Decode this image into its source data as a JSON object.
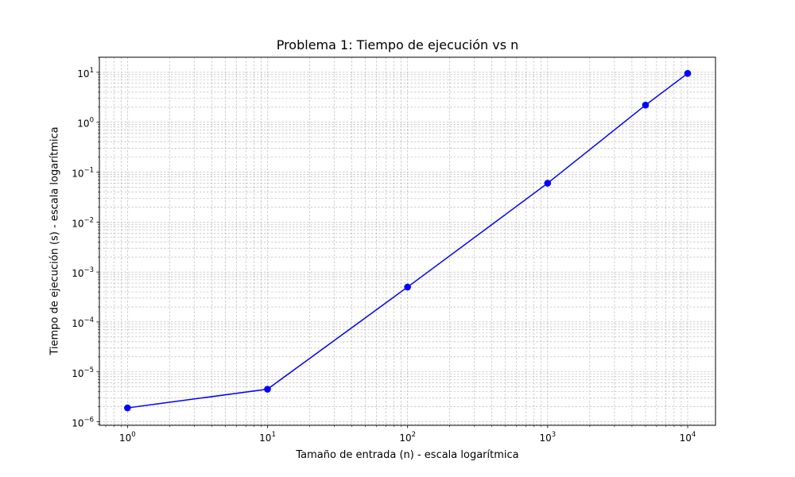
{
  "chart_data": {
    "type": "line",
    "title": "Problema 1: Tiempo de ejecución vs n",
    "xlabel": "Tamaño de entrada (n) - escala logarítmica",
    "ylabel": "Tiempo de ejecución (s) - escala logarítmica",
    "x_scale": "log",
    "y_scale": "log",
    "grid": "both (major and minor), dashed",
    "xlim": [
      0.63,
      15800
    ],
    "ylim": [
      8.5e-07,
      20
    ],
    "x_ticks": [
      {
        "value": 1,
        "base": "10",
        "exp": "0"
      },
      {
        "value": 10,
        "base": "10",
        "exp": "1"
      },
      {
        "value": 100,
        "base": "10",
        "exp": "2"
      },
      {
        "value": 1000,
        "base": "10",
        "exp": "3"
      },
      {
        "value": 10000,
        "base": "10",
        "exp": "4"
      }
    ],
    "y_ticks": [
      {
        "value": 1e-06,
        "base": "10",
        "exp": "−6"
      },
      {
        "value": 1e-05,
        "base": "10",
        "exp": "−5"
      },
      {
        "value": 0.0001,
        "base": "10",
        "exp": "−4"
      },
      {
        "value": 0.001,
        "base": "10",
        "exp": "−3"
      },
      {
        "value": 0.01,
        "base": "10",
        "exp": "−2"
      },
      {
        "value": 0.1,
        "base": "10",
        "exp": "−1"
      },
      {
        "value": 1,
        "base": "10",
        "exp": "0"
      },
      {
        "value": 10,
        "base": "10",
        "exp": "1"
      }
    ],
    "series": [
      {
        "color": "#0000ff",
        "marker": "circle",
        "x": [
          1,
          10,
          100,
          1000,
          5000,
          10000
        ],
        "y": [
          1.9e-06,
          4.5e-06,
          0.0005,
          0.06,
          2.2,
          9.5
        ]
      }
    ]
  }
}
